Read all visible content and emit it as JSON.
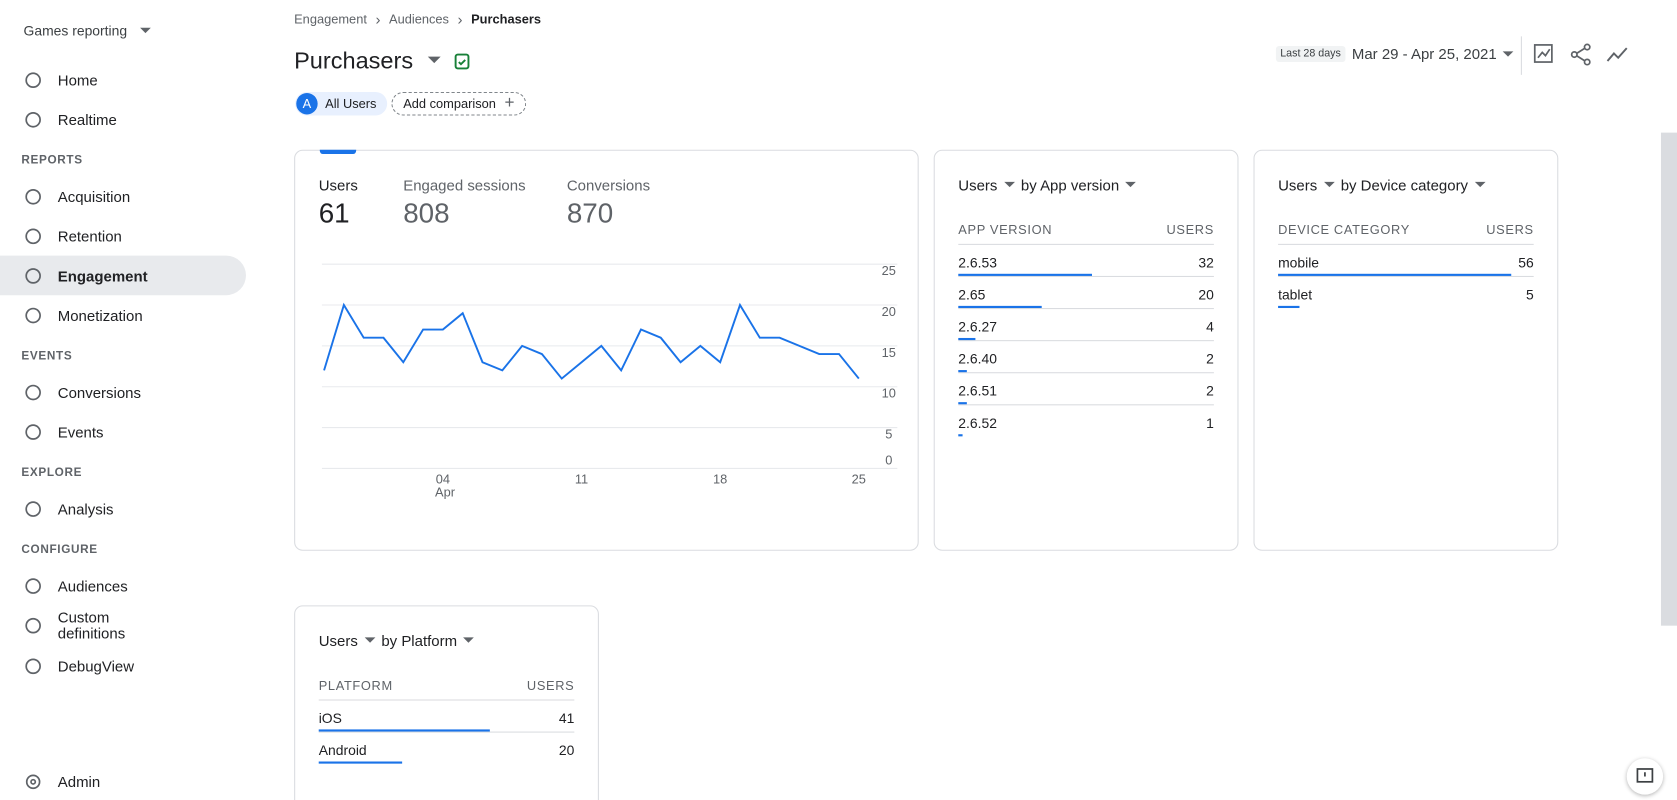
{
  "sidebar": {
    "property": "Games reporting",
    "items": [
      "Home",
      "Realtime"
    ],
    "sections": [
      {
        "title": "REPORTS",
        "items": [
          "Acquisition",
          "Retention",
          "Engagement",
          "Monetization"
        ]
      },
      {
        "title": "EVENTS",
        "items": [
          "Conversions",
          "Events"
        ]
      },
      {
        "title": "EXPLORE",
        "items": [
          "Analysis"
        ]
      },
      {
        "title": "CONFIGURE",
        "items": [
          "Audiences",
          "Custom definitions",
          "DebugView"
        ]
      }
    ],
    "admin": "Admin"
  },
  "header": {
    "breadcrumb": [
      "Engagement",
      "Audiences",
      "Purchasers"
    ],
    "title": "Purchasers",
    "comparison_letter": "A",
    "comparison": "All Users",
    "add_comparison": "Add comparison",
    "date_preset": "Last 28 days",
    "date_range": "Mar 29 - Apr 25, 2021"
  },
  "kpis": [
    {
      "label": "Users",
      "value": 61
    },
    {
      "label": "Engaged sessions",
      "value": 808
    },
    {
      "label": "Conversions",
      "value": 870
    }
  ],
  "chart_data": {
    "type": "line",
    "color": "#1a73e8",
    "grid": true,
    "categories": [
      null,
      null,
      null,
      null,
      null,
      null,
      "04",
      null,
      null,
      null,
      null,
      null,
      null,
      "11",
      null,
      null,
      null,
      null,
      null,
      null,
      "18",
      null,
      null,
      null,
      null,
      null,
      null,
      "25"
    ],
    "category_sublabels": [
      null,
      null,
      null,
      null,
      null,
      null,
      "Apr",
      null,
      null,
      null,
      null,
      null,
      null,
      null,
      null,
      null,
      null,
      null,
      null,
      null,
      null,
      null,
      null,
      null,
      null,
      null,
      null,
      null
    ],
    "values": [
      12,
      20,
      16,
      16,
      13,
      17,
      17,
      19,
      13,
      12,
      15,
      14,
      11,
      13,
      15,
      12,
      17,
      16,
      13,
      15,
      13,
      20,
      16,
      16,
      15,
      14,
      14,
      11
    ],
    "ylim": [
      0,
      25
    ],
    "yticks": [
      0,
      5,
      10,
      15,
      20,
      25
    ]
  },
  "tables": [
    {
      "metric": "Users",
      "dimension": "by App version",
      "columns": [
        "APP VERSION",
        "USERS"
      ],
      "rows": [
        [
          "2.6.53",
          32
        ],
        [
          "2.65",
          20
        ],
        [
          "2.6.27",
          4
        ],
        [
          "2.6.40",
          2
        ],
        [
          "2.6.51",
          2
        ],
        [
          "2.6.52",
          1
        ]
      ]
    },
    {
      "metric": "Users",
      "dimension": "by Device category",
      "columns": [
        "DEVICE CATEGORY",
        "USERS"
      ],
      "rows": [
        [
          "mobile",
          56
        ],
        [
          "tablet",
          5
        ]
      ]
    },
    {
      "metric": "Users",
      "dimension": "by Platform",
      "columns": [
        "PLATFORM",
        "USERS"
      ],
      "rows": [
        [
          "iOS",
          41
        ],
        [
          "Android",
          20
        ]
      ]
    }
  ]
}
